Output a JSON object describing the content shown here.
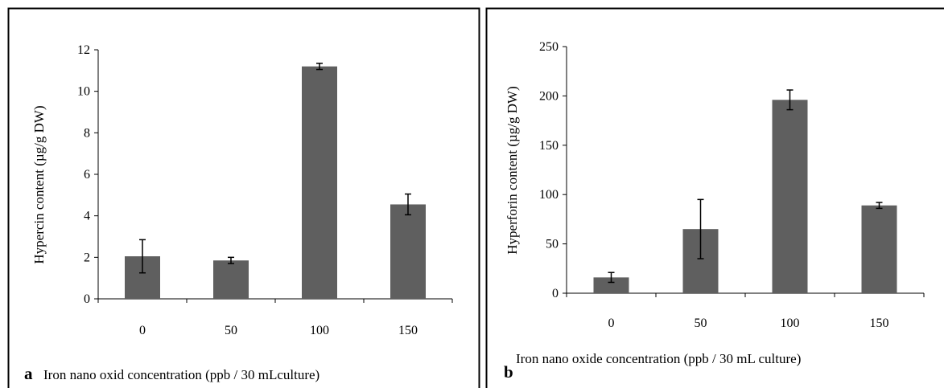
{
  "chart_data": [
    {
      "type": "bar",
      "title": "",
      "panel_letter": "a",
      "xlabel": "Iron nano oxid concentration (ppb / 30 mLculture)",
      "ylabel": "Hypercin content (µg/g DW)",
      "categories": [
        "0",
        "50",
        "100",
        "150"
      ],
      "values": [
        2.05,
        1.85,
        11.2,
        4.55
      ],
      "errors": [
        0.8,
        0.15,
        0.15,
        0.5
      ],
      "ylim": [
        0,
        12
      ],
      "yticks": [
        0,
        2,
        4,
        6,
        8,
        10,
        12
      ],
      "ytick_labels": [
        "0",
        "2",
        "4",
        "6",
        "8",
        "10",
        "12"
      ],
      "grid": false,
      "legend": "none",
      "bar_color": "#5f5f5f"
    },
    {
      "type": "bar",
      "title": "",
      "panel_letter": "b",
      "xlabel": "Iron nano oxide concentration (ppb / 30 mL culture)",
      "ylabel": "Hyperforin content (µg/g DW)",
      "categories": [
        "0",
        "50",
        "100",
        "150"
      ],
      "values": [
        16,
        65,
        196,
        89
      ],
      "errors": [
        5,
        30,
        10,
        3
      ],
      "ylim": [
        0,
        250
      ],
      "yticks": [
        0,
        50,
        100,
        150,
        200,
        250
      ],
      "ytick_labels": [
        "0",
        "50",
        "100",
        "150",
        "200",
        "250"
      ],
      "grid": false,
      "legend": "none",
      "bar_color": "#5f5f5f"
    }
  ]
}
